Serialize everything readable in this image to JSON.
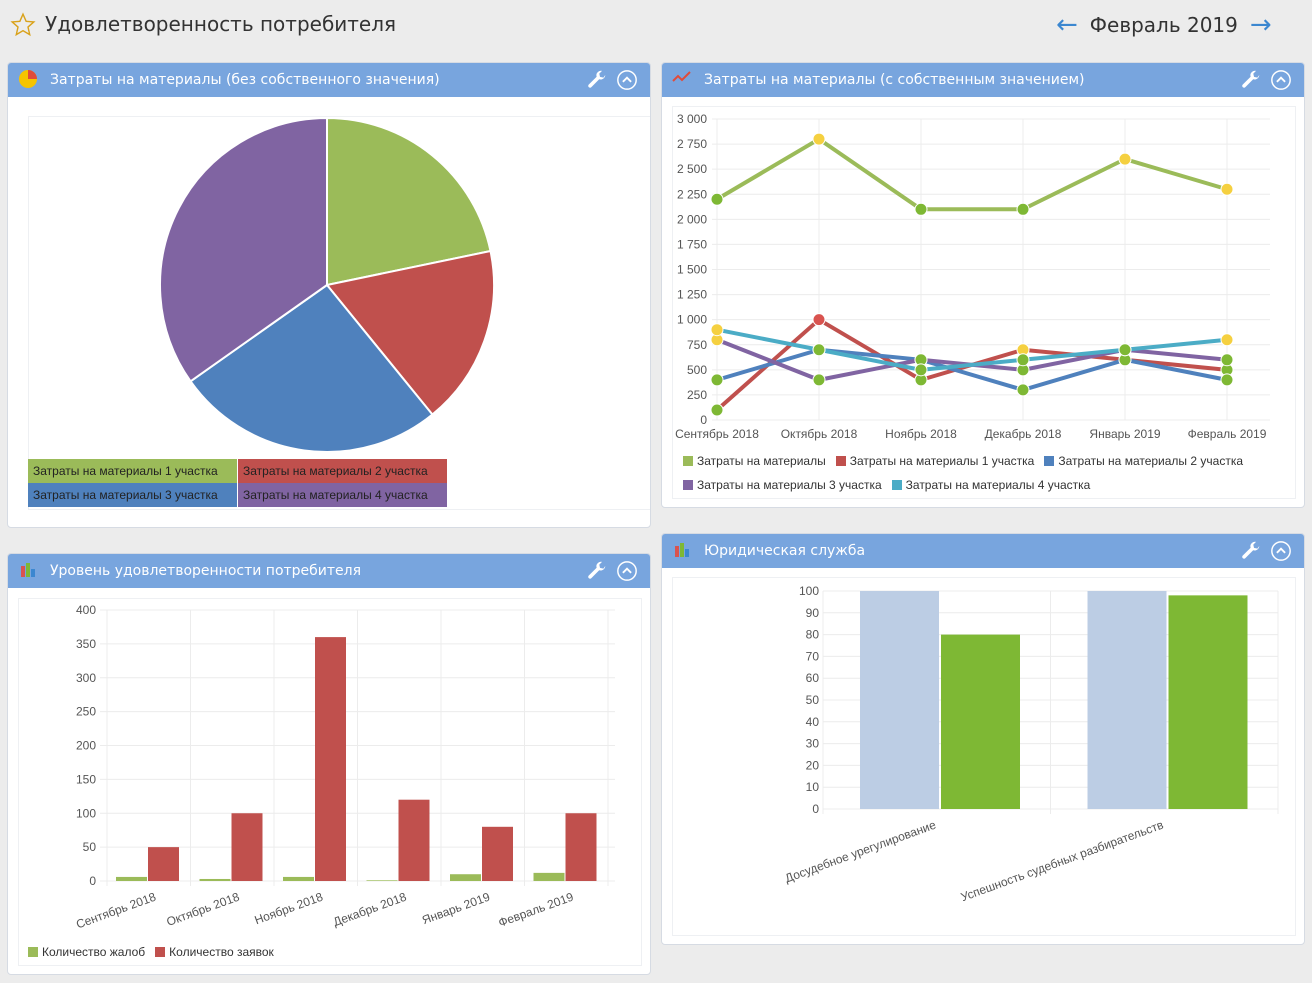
{
  "page": {
    "title": "Удовлетворенность потребителя",
    "period": "Февраль 2019",
    "prev_icon": "arrow-left-icon",
    "next_icon": "arrow-right-icon"
  },
  "colors": {
    "header": "#78a5de",
    "green": "#9bbb59",
    "red": "#c0504d",
    "blue": "#4f81bd",
    "purple": "#8064a2",
    "cyan": "#4bacc6",
    "light_blue": "#bccde4",
    "bright_green": "#7eb834",
    "marker_yellow": "#f5d040",
    "marker_green": "#7eb834"
  },
  "panels": [
    {
      "title": "Затраты на материалы (без собственного значения)",
      "icon": "pie-chart-icon"
    },
    {
      "title": "Затраты на материалы (с собственным значением)",
      "icon": "line-chart-icon"
    },
    {
      "title": "Уровень удовлетворенности потребителя",
      "icon": "bar-chart-icon"
    },
    {
      "title": "Юридическая служба",
      "icon": "bar-chart-icon"
    }
  ],
  "chart_data": [
    {
      "type": "pie",
      "labels": [
        "Затраты на материалы 1 участка",
        "Затраты на материалы 2 участка",
        "Затраты на материалы 3 участка",
        "Затраты на материалы 4 участка"
      ],
      "values": [
        500,
        400,
        600,
        800
      ],
      "colors": [
        "#9bbb59",
        "#c0504d",
        "#4f81bd",
        "#8064a2"
      ],
      "legend": "bottom"
    },
    {
      "type": "line",
      "categories": [
        "Сентябрь 2018",
        "Октябрь 2018",
        "Ноябрь 2018",
        "Декабрь 2018",
        "Январь 2019",
        "Февраль 2019"
      ],
      "ylim": [
        0,
        3000
      ],
      "yticks": [
        "0",
        "250",
        "500",
        "750",
        "1 000",
        "1 250",
        "1 500",
        "1 750",
        "2 000",
        "2 250",
        "2 500",
        "2 750",
        "3 000"
      ],
      "grid": true,
      "legend": "bottom",
      "series": [
        {
          "name": "Затраты на материалы",
          "color": "#9bbb59",
          "values": [
            2200,
            2800,
            2100,
            2100,
            2600,
            2300
          ]
        },
        {
          "name": "Затраты на материалы 1 участка",
          "color": "#c0504d",
          "values": [
            100,
            1000,
            400,
            700,
            600,
            500
          ]
        },
        {
          "name": "Затраты на материалы 2 участка",
          "color": "#4f81bd",
          "values": [
            400,
            700,
            600,
            300,
            600,
            400
          ]
        },
        {
          "name": "Затраты на материалы 3 участка",
          "color": "#8064a2",
          "values": [
            800,
            400,
            600,
            500,
            700,
            600
          ]
        },
        {
          "name": "Затраты на материалы 4 участка",
          "color": "#4bacc6",
          "values": [
            900,
            700,
            500,
            600,
            700,
            800
          ]
        }
      ]
    },
    {
      "type": "bar",
      "categories": [
        "Сентябрь 2018",
        "Октябрь 2018",
        "Ноябрь 2018",
        "Декабрь 2018",
        "Январь 2019",
        "Февраль 2019"
      ],
      "ylim": [
        0,
        400
      ],
      "yticks": [
        "0",
        "50",
        "100",
        "150",
        "200",
        "250",
        "300",
        "350",
        "400"
      ],
      "grid": true,
      "legend": "bottom",
      "series": [
        {
          "name": "Количество жалоб",
          "color": "#9bbb59",
          "values": [
            6,
            3,
            6,
            1,
            10,
            12
          ]
        },
        {
          "name": "Количество заявок",
          "color": "#c0504d",
          "values": [
            50,
            100,
            360,
            120,
            80,
            100
          ]
        }
      ]
    },
    {
      "type": "bar",
      "categories": [
        "Досудебное урегулирование",
        "Успешность судебных разбирательств"
      ],
      "ylim": [
        0,
        100
      ],
      "yticks": [
        "0",
        "10",
        "20",
        "30",
        "40",
        "50",
        "60",
        "70",
        "80",
        "90",
        "100"
      ],
      "grid": true,
      "series": [
        {
          "color": "#bccde4",
          "values": [
            100,
            100
          ]
        },
        {
          "color": "#7eb834",
          "values": [
            80,
            98
          ]
        }
      ]
    }
  ]
}
